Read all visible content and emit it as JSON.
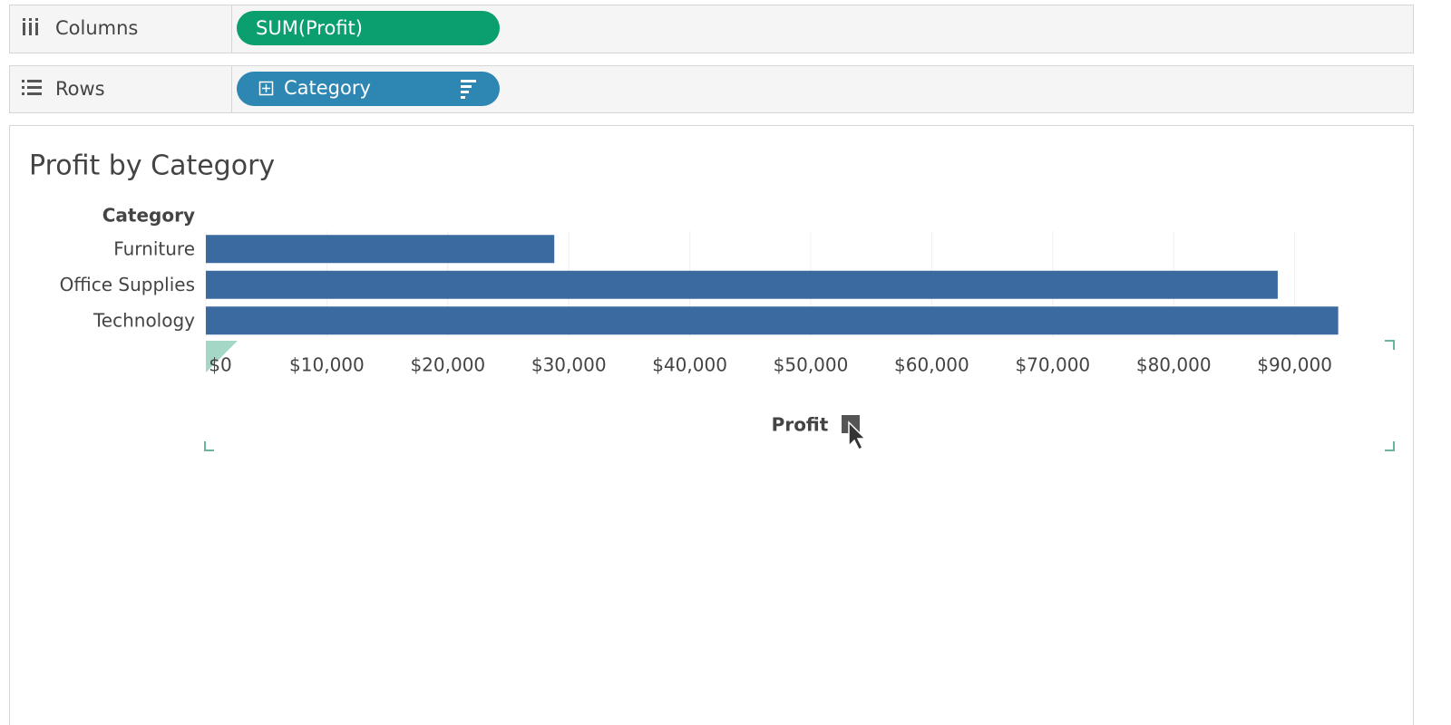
{
  "shelves": {
    "columns": {
      "label": "Columns",
      "pill": "SUM(Profit)"
    },
    "rows": {
      "label": "Rows",
      "pill": "Category"
    }
  },
  "chart_data": {
    "type": "bar",
    "orientation": "horizontal",
    "title": "Profit by Category",
    "category_header": "Category",
    "xlabel": "Profit",
    "categories": [
      "Furniture",
      "Office Supplies",
      "Technology"
    ],
    "values": [
      28800,
      88600,
      93600
    ],
    "color": "#3b6aa0",
    "xlim": [
      0,
      98200
    ],
    "xticks": [
      {
        "value": 0,
        "label": "$0"
      },
      {
        "value": 10000,
        "label": "$10,000"
      },
      {
        "value": 20000,
        "label": "$20,000"
      },
      {
        "value": 30000,
        "label": "$30,000"
      },
      {
        "value": 40000,
        "label": "$40,000"
      },
      {
        "value": 50000,
        "label": "$50,000"
      },
      {
        "value": 60000,
        "label": "$60,000"
      },
      {
        "value": 70000,
        "label": "$70,000"
      },
      {
        "value": 80000,
        "label": "$80,000"
      },
      {
        "value": 90000,
        "label": "$90,000"
      }
    ],
    "grid": true
  }
}
